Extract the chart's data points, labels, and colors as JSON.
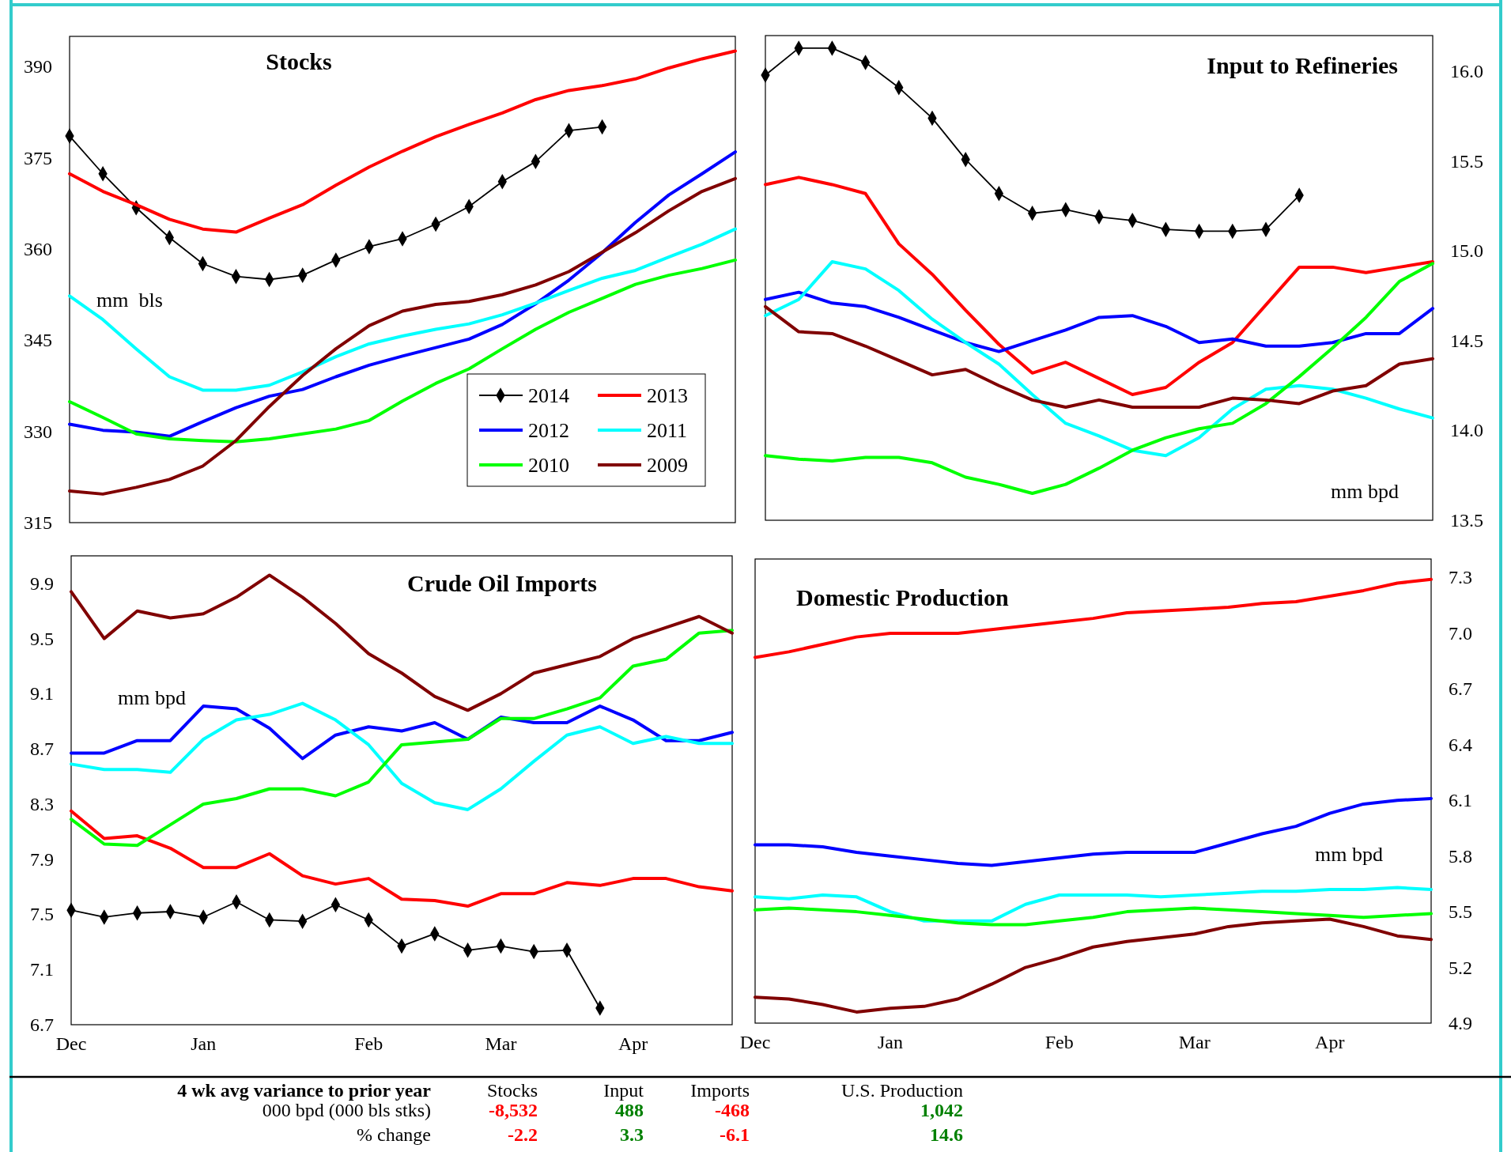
{
  "chart_data": [
    {
      "type": "line",
      "title": "Stocks",
      "ylabel": "mm  bls",
      "categories": [
        null,
        null,
        null,
        null,
        null,
        null,
        null,
        null,
        null,
        null,
        null,
        null,
        null,
        null,
        null,
        null,
        null,
        null,
        null,
        null,
        null
      ],
      "ylim": [
        315,
        395
      ],
      "yticks": [
        315,
        330,
        345,
        360,
        375,
        390
      ],
      "legend": "bottom right",
      "series": [
        {
          "name": "2014",
          "color": "#000000",
          "marker": "diamond",
          "values": [
            378.6,
            372.4,
            366.8,
            361.9,
            357.6,
            355.5,
            355.0,
            355.7,
            358.2,
            360.4,
            361.7,
            364.1,
            367.0,
            371.1,
            374.4,
            379.5,
            380.1,
            null,
            null,
            null,
            null
          ]
        },
        {
          "name": "2013",
          "color": "#ff0000",
          "values": [
            372.4,
            369.5,
            367.3,
            364.9,
            363.3,
            362.8,
            365.1,
            367.3,
            370.5,
            373.5,
            376.1,
            378.5,
            380.5,
            382.4,
            384.6,
            386.1,
            386.9,
            388.0,
            389.8,
            391.3,
            392.6
          ]
        },
        {
          "name": "2012",
          "color": "#0000ff",
          "values": [
            331.2,
            330.2,
            329.9,
            329.2,
            331.6,
            333.9,
            335.8,
            336.9,
            339.0,
            340.9,
            342.4,
            343.8,
            345.2,
            347.6,
            351.0,
            354.9,
            359.4,
            364.4,
            368.9,
            372.4,
            376.0
          ]
        },
        {
          "name": "2011",
          "color": "#00ffff",
          "values": [
            352.3,
            348.4,
            343.6,
            339.0,
            336.8,
            336.8,
            337.6,
            339.8,
            342.3,
            344.4,
            345.7,
            346.8,
            347.7,
            349.2,
            351.1,
            353.2,
            355.2,
            356.5,
            358.7,
            360.8,
            363.3
          ]
        },
        {
          "name": "2010",
          "color": "#00ff00",
          "values": [
            334.9,
            332.3,
            329.6,
            328.8,
            328.5,
            328.3,
            328.8,
            329.6,
            330.4,
            331.8,
            335.0,
            337.9,
            340.3,
            343.6,
            346.8,
            349.6,
            351.9,
            354.2,
            355.7,
            356.8,
            358.2
          ]
        },
        {
          "name": "2009",
          "color": "#800000",
          "values": [
            320.2,
            319.7,
            320.8,
            322.1,
            324.3,
            328.5,
            334.1,
            339.2,
            343.6,
            347.4,
            349.8,
            350.9,
            351.4,
            352.5,
            354.1,
            356.3,
            359.5,
            362.7,
            366.3,
            369.5,
            371.6
          ]
        }
      ]
    },
    {
      "type": "line",
      "title": "Input to Refineries",
      "ylabel": "mm bpd",
      "categories": [
        null,
        null,
        null,
        null,
        null,
        null,
        null,
        null,
        null,
        null,
        null,
        null,
        null,
        null,
        null,
        null,
        null,
        null,
        null,
        null,
        null
      ],
      "ylim": [
        13.5,
        16.2
      ],
      "yticks": [
        {
          "value": 13.5,
          "label": "13.5"
        },
        {
          "value": 14,
          "label": "14.0"
        },
        {
          "value": 14.5,
          "label": "14.5"
        },
        {
          "value": 15,
          "label": "15.0"
        },
        {
          "value": 15.5,
          "label": "15.5"
        },
        {
          "value": 16,
          "label": "16.0"
        }
      ],
      "series": [
        {
          "color": "#000000",
          "marker": "diamond",
          "values": [
            15.98,
            16.13,
            16.13,
            16.05,
            15.91,
            15.74,
            15.51,
            15.32,
            15.21,
            15.23,
            15.19,
            15.17,
            15.12,
            15.11,
            15.11,
            15.12,
            15.31,
            null,
            null,
            null,
            null
          ]
        },
        {
          "color": "#ff0000",
          "values": [
            15.37,
            15.41,
            15.37,
            15.32,
            15.04,
            14.87,
            14.67,
            14.48,
            14.32,
            14.38,
            14.29,
            14.2,
            14.24,
            14.38,
            14.49,
            14.7,
            14.91,
            14.91,
            14.88,
            14.91,
            14.94
          ]
        },
        {
          "color": "#0000ff",
          "values": [
            14.73,
            14.77,
            14.71,
            14.69,
            14.63,
            14.56,
            14.49,
            14.44,
            14.5,
            14.56,
            14.63,
            14.64,
            14.58,
            14.49,
            14.51,
            14.47,
            14.47,
            14.49,
            14.54,
            14.54,
            14.68
          ]
        },
        {
          "color": "#00ffff",
          "values": [
            14.64,
            14.73,
            14.94,
            14.9,
            14.78,
            14.62,
            14.49,
            14.37,
            14.2,
            14.04,
            13.97,
            13.89,
            13.86,
            13.96,
            14.12,
            14.23,
            14.25,
            14.23,
            14.18,
            14.12,
            14.07
          ]
        },
        {
          "color": "#00ff00",
          "values": [
            13.86,
            13.84,
            13.83,
            13.85,
            13.85,
            13.82,
            13.74,
            13.7,
            13.65,
            13.7,
            13.79,
            13.89,
            13.96,
            14.01,
            14.04,
            14.15,
            14.3,
            14.46,
            14.63,
            14.83,
            14.93
          ]
        },
        {
          "color": "#800000",
          "values": [
            14.69,
            14.55,
            14.54,
            14.47,
            14.39,
            14.31,
            14.34,
            14.25,
            14.17,
            14.13,
            14.17,
            14.13,
            14.13,
            14.13,
            14.18,
            14.17,
            14.15,
            14.22,
            14.25,
            14.37,
            14.4
          ]
        }
      ]
    },
    {
      "type": "line",
      "title": "Crude Oil Imports",
      "ylabel": "mm bpd",
      "categories": [
        "Dec",
        null,
        null,
        null,
        "Jan",
        null,
        null,
        null,
        null,
        "Feb",
        null,
        null,
        null,
        "Mar",
        null,
        null,
        null,
        "Apr",
        null,
        null,
        null
      ],
      "ylim": [
        6.7,
        10.1
      ],
      "yticks": [
        6.7,
        7.1,
        7.5,
        7.9,
        8.3,
        8.7,
        9.1,
        9.5,
        9.9
      ],
      "series": [
        {
          "color": "#000000",
          "marker": "diamond",
          "values": [
            7.53,
            7.48,
            7.51,
            7.52,
            7.48,
            7.59,
            7.46,
            7.45,
            7.57,
            7.46,
            7.27,
            7.36,
            7.24,
            7.27,
            7.23,
            7.24,
            6.82,
            null,
            null,
            null,
            null
          ]
        },
        {
          "color": "#ff0000",
          "values": [
            8.25,
            8.05,
            8.07,
            7.98,
            7.84,
            7.84,
            7.94,
            7.78,
            7.72,
            7.76,
            7.61,
            7.6,
            7.56,
            7.65,
            7.65,
            7.73,
            7.71,
            7.76,
            7.76,
            7.7,
            7.67
          ]
        },
        {
          "color": "#0000ff",
          "values": [
            8.67,
            8.67,
            8.76,
            8.76,
            9.01,
            8.99,
            8.85,
            8.63,
            8.8,
            8.86,
            8.83,
            8.89,
            8.77,
            8.93,
            8.89,
            8.89,
            9.01,
            8.91,
            8.76,
            8.76,
            8.82
          ]
        },
        {
          "color": "#00ffff",
          "values": [
            8.59,
            8.55,
            8.55,
            8.53,
            8.77,
            8.91,
            8.95,
            9.03,
            8.91,
            8.73,
            8.45,
            8.31,
            8.26,
            8.41,
            8.61,
            8.8,
            8.86,
            8.74,
            8.79,
            8.74,
            8.74
          ]
        },
        {
          "color": "#00ff00",
          "values": [
            8.19,
            8.01,
            8.0,
            8.15,
            8.3,
            8.34,
            8.41,
            8.41,
            8.36,
            8.46,
            8.73,
            8.75,
            8.77,
            8.92,
            8.92,
            8.99,
            9.07,
            9.3,
            9.35,
            9.54,
            9.56
          ]
        },
        {
          "color": "#800000",
          "values": [
            9.84,
            9.5,
            9.7,
            9.65,
            9.68,
            9.8,
            9.96,
            9.8,
            9.61,
            9.39,
            9.25,
            9.08,
            8.98,
            9.1,
            9.25,
            9.31,
            9.37,
            9.5,
            9.58,
            9.66,
            9.54
          ]
        }
      ]
    },
    {
      "type": "line",
      "title": "Domestic Production",
      "ylabel": "mm bpd",
      "categories": [
        "Dec",
        null,
        null,
        null,
        "Jan",
        null,
        null,
        null,
        null,
        "Feb",
        null,
        null,
        null,
        "Mar",
        null,
        null,
        null,
        "Apr",
        null,
        null,
        null
      ],
      "ylim": [
        4.9,
        7.4
      ],
      "yticks": [
        4.9,
        5.2,
        5.5,
        5.8,
        6.1,
        6.4,
        6.7,
        {
          "value": 7,
          "label": "7.0"
        },
        7.3
      ],
      "series": [
        {
          "color": "#ff0000",
          "values": [
            6.87,
            6.9,
            6.94,
            6.98,
            7.0,
            7.0,
            7.0,
            7.02,
            7.04,
            7.06,
            7.08,
            7.11,
            7.12,
            7.13,
            7.14,
            7.16,
            7.17,
            7.2,
            7.23,
            7.27,
            7.29
          ]
        },
        {
          "color": "#0000ff",
          "values": [
            5.86,
            5.86,
            5.85,
            5.82,
            5.8,
            5.78,
            5.76,
            5.75,
            5.77,
            5.79,
            5.81,
            5.82,
            5.82,
            5.82,
            5.87,
            5.92,
            5.96,
            6.03,
            6.08,
            6.1,
            6.11
          ]
        },
        {
          "color": "#00ffff",
          "values": [
            5.58,
            5.57,
            5.59,
            5.58,
            5.5,
            5.45,
            5.45,
            5.45,
            5.54,
            5.59,
            5.59,
            5.59,
            5.58,
            5.59,
            5.6,
            5.61,
            5.61,
            5.62,
            5.62,
            5.63,
            5.62
          ]
        },
        {
          "color": "#00ff00",
          "values": [
            5.51,
            5.52,
            5.51,
            5.5,
            5.48,
            5.46,
            5.44,
            5.43,
            5.43,
            5.45,
            5.47,
            5.5,
            5.51,
            5.52,
            5.51,
            5.5,
            5.49,
            5.48,
            5.47,
            5.48,
            5.49
          ]
        },
        {
          "color": "#800000",
          "values": [
            5.04,
            5.03,
            5.0,
            4.96,
            4.98,
            4.99,
            5.03,
            5.11,
            5.2,
            5.25,
            5.31,
            5.34,
            5.36,
            5.38,
            5.42,
            5.44,
            5.45,
            5.46,
            5.42,
            5.37,
            5.35
          ]
        }
      ]
    },
    {
      "type": "other",
      "title": "4 wk avg variance to prior year",
      "categories": [
        "Stocks",
        "Input",
        "Imports",
        "U.S. Production"
      ],
      "series": [
        {
          "name": "000 bpd (000 bls stks)",
          "values": [
            -8532,
            488,
            -468,
            1042
          ],
          "value_labels": [
            "-8,532",
            "488",
            "-468",
            "1,042"
          ],
          "colors": [
            "#ff0000",
            "#008000",
            "#ff0000",
            "#008000"
          ]
        },
        {
          "name": "% change",
          "values": [
            -2.2,
            3.3,
            -6.1,
            14.6
          ],
          "value_labels": [
            "-2.2",
            "3.3",
            "-6.1",
            "14.6"
          ],
          "colors": [
            "#ff0000",
            "#008000",
            "#ff0000",
            "#008000"
          ]
        }
      ]
    }
  ]
}
